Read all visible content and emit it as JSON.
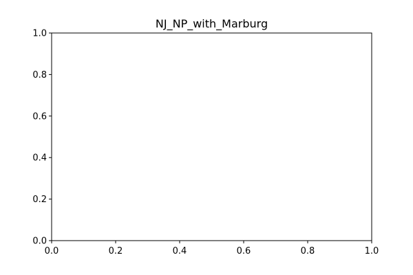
{
  "chart_data": {
    "type": "line",
    "title": "NJ_NP_with_Marburg",
    "xlabel": "",
    "ylabel": "",
    "xlim": [
      0.0,
      1.0
    ],
    "ylim": [
      0.0,
      1.0
    ],
    "x_ticks": [
      0.0,
      0.2,
      0.4,
      0.6,
      0.8,
      1.0
    ],
    "y_ticks": [
      0.0,
      0.2,
      0.4,
      0.6,
      0.8,
      1.0
    ],
    "x_tick_labels": [
      "0.0",
      "0.2",
      "0.4",
      "0.6",
      "0.8",
      "1.0"
    ],
    "y_tick_labels": [
      "0.0",
      "0.2",
      "0.4",
      "0.6",
      "0.8",
      "1.0"
    ],
    "series": [],
    "grid": false,
    "legend": "none"
  }
}
